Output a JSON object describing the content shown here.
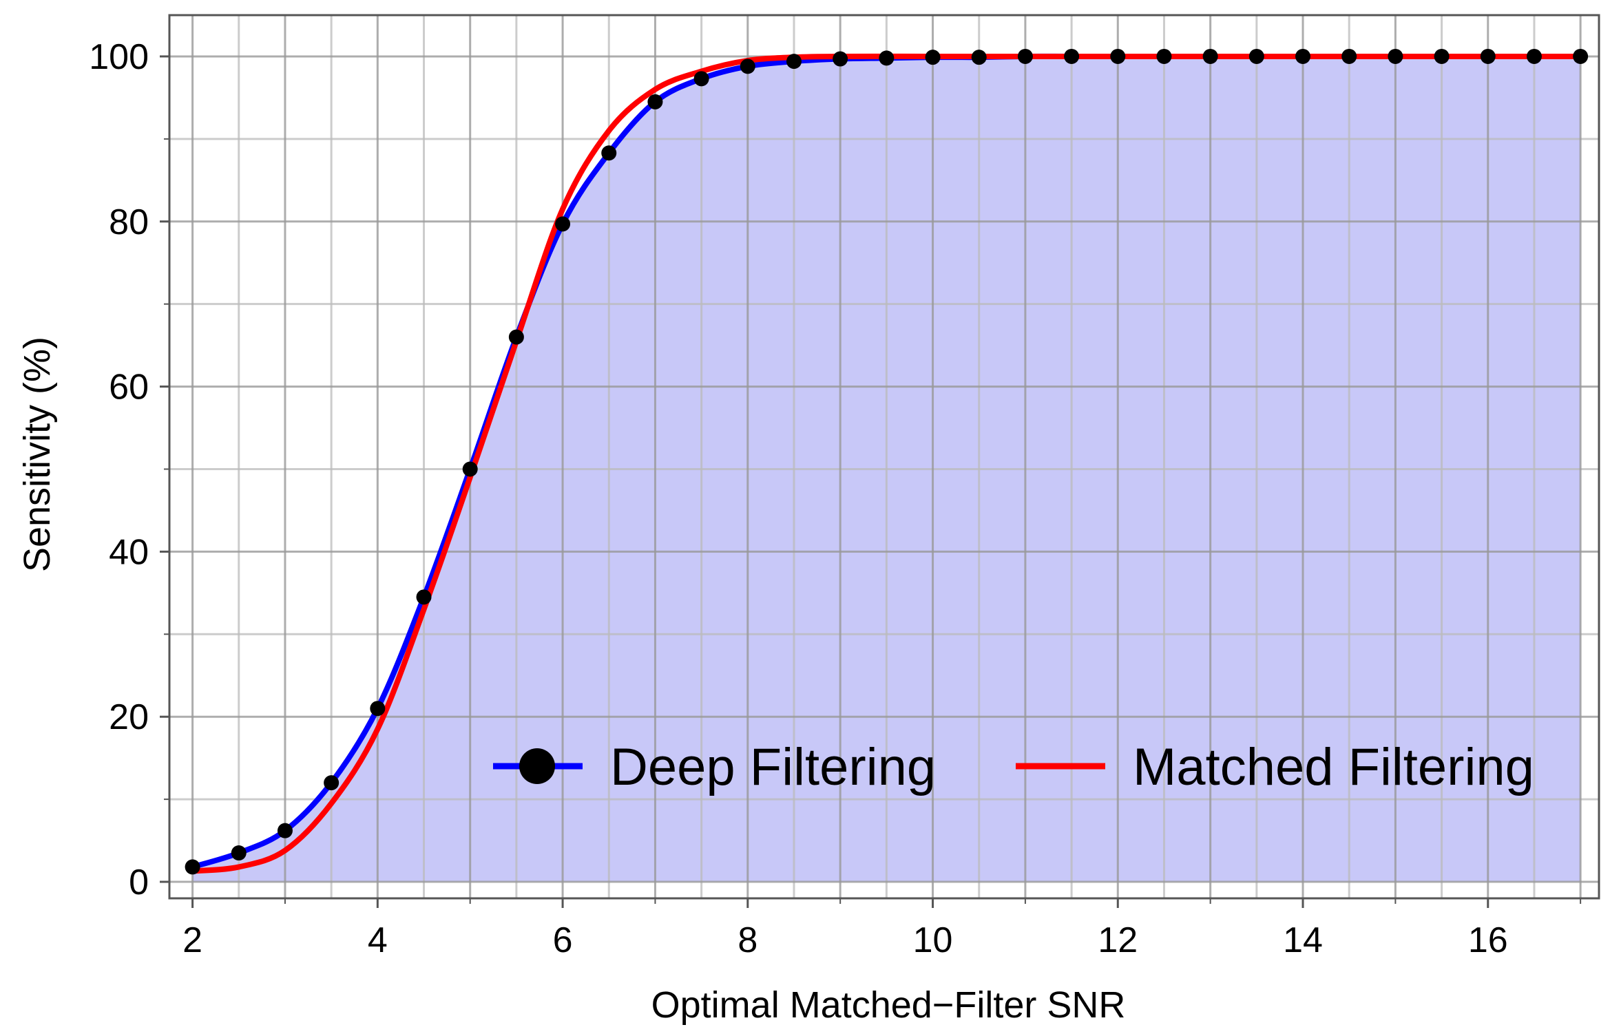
{
  "chart_data": {
    "type": "line",
    "title": "",
    "xlabel": "Optimal Matched−Filter SNR",
    "ylabel": "Sensitivity (%)",
    "xlim": [
      1.75,
      17.2
    ],
    "ylim": [
      -2,
      105
    ],
    "x_ticks": [
      2,
      4,
      6,
      8,
      10,
      12,
      14,
      16
    ],
    "y_ticks": [
      0,
      20,
      40,
      60,
      80,
      100
    ],
    "x_tick_labels": [
      "2",
      "4",
      "6",
      "8",
      "10",
      "12",
      "14",
      "16"
    ],
    "y_tick_labels": [
      "0",
      "20",
      "40",
      "60",
      "80",
      "100"
    ],
    "grid": true,
    "legend_position": "bottom-right",
    "series": [
      {
        "name": "Deep Filtering",
        "color": "#0000ff",
        "marker": "circle",
        "marker_color": "#000000",
        "fill": true,
        "fill_color": "#c8c8f8",
        "x": [
          2,
          2.5,
          3,
          3.5,
          4,
          4.5,
          5,
          5.5,
          6,
          6.5,
          7,
          7.5,
          8,
          8.5,
          9,
          9.5,
          10,
          10.5,
          11,
          11.5,
          12,
          12.5,
          13,
          13.5,
          14,
          14.5,
          15,
          15.5,
          16,
          16.5,
          17
        ],
        "y": [
          1.8,
          3.5,
          6.2,
          12.0,
          21.0,
          34.5,
          50.0,
          66.0,
          79.7,
          88.3,
          94.5,
          97.3,
          98.8,
          99.4,
          99.7,
          99.8,
          99.9,
          99.9,
          100,
          100,
          100,
          100,
          100,
          100,
          100,
          100,
          100,
          100,
          100,
          100,
          100
        ]
      },
      {
        "name": "Matched Filtering",
        "color": "#ff0000",
        "marker": "none",
        "fill": false,
        "x": [
          2,
          2.5,
          3,
          3.5,
          4,
          4.5,
          5,
          5.5,
          6,
          6.5,
          7,
          7.5,
          8,
          8.5,
          9,
          10,
          11,
          12,
          13,
          14,
          15,
          16,
          17
        ],
        "y": [
          1.3,
          1.8,
          3.8,
          9.5,
          18.5,
          33.0,
          49.0,
          65.5,
          81.5,
          91.0,
          96.0,
          98.2,
          99.5,
          99.9,
          100,
          100,
          100,
          100,
          100,
          100,
          100,
          100,
          100
        ]
      }
    ]
  }
}
